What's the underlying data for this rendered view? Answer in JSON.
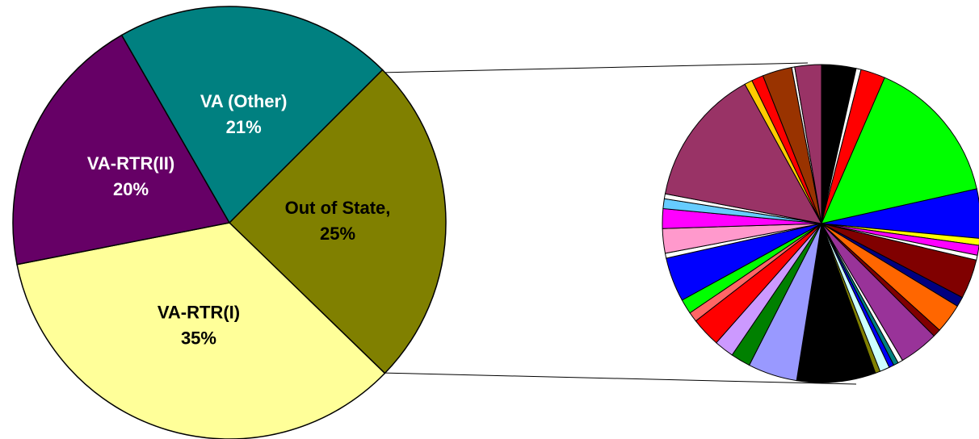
{
  "chart_data": [
    {
      "type": "pie",
      "categories": [
        "Out of State,",
        "VA-RTR(I)",
        "VA-RTR(II)",
        "VA (Other)"
      ],
      "values": [
        25,
        35,
        20,
        21
      ],
      "value_labels": [
        "25%",
        "35%",
        "20%",
        "21%"
      ],
      "colors": [
        "#808000",
        "#ffff99",
        "#660066",
        "#008080"
      ]
    },
    {
      "type": "pie",
      "categories": [
        null,
        null,
        null,
        null,
        null,
        null,
        null,
        null,
        null,
        null,
        null,
        null,
        null,
        null,
        null,
        null,
        null,
        null,
        null,
        null,
        null,
        null,
        null,
        null,
        null,
        null,
        null,
        null,
        null,
        null,
        null,
        null,
        null,
        null,
        null,
        null,
        null
      ],
      "values": [
        3.5,
        0.5,
        2.5,
        15,
        5,
        0.7,
        1,
        0.5,
        4,
        1,
        3,
        0.8,
        4,
        0.5,
        0.5,
        0.5,
        1,
        0.5,
        8,
        5,
        2,
        2,
        3,
        1,
        1.5,
        4.5,
        0.5,
        2.5,
        2,
        1,
        0.5,
        14,
        0.8,
        1.2,
        3,
        0.3,
        2.7
      ],
      "colors": [
        "#000000",
        "#ffffff",
        "#ff0000",
        "#00ff00",
        "#0000ff",
        "#ffff00",
        "#ff00ff",
        "#ffffff",
        "#800000",
        "#000080",
        "#ff6600",
        "#800000",
        "#993399",
        "#ffffff",
        "#008080",
        "#0000ff",
        "#ccffff",
        "#808000",
        "#000000",
        "#9999ff",
        "#008000",
        "#cc99ff",
        "#ff0000",
        "#ff6666",
        "#00ff00",
        "#0000ff",
        "#ffffff",
        "#ff99cc",
        "#ff00ff",
        "#66ccff",
        "#ffffff",
        "#993366",
        "#ffcc00",
        "#ff0000",
        "#993300",
        "#ffffff",
        "#993366"
      ]
    }
  ]
}
